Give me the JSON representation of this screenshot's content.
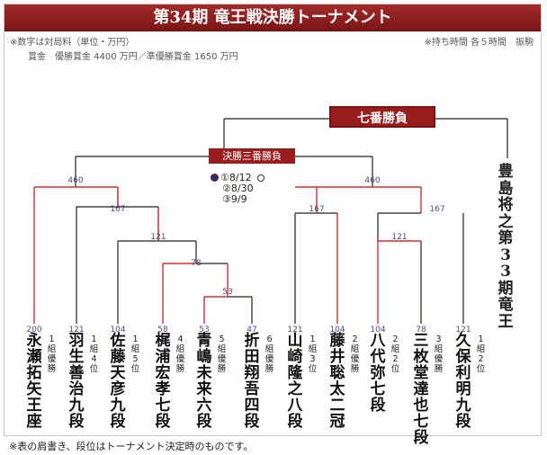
{
  "title": "第34期 竜王戦決勝トーナメント",
  "notes": {
    "unit": "※数字は対局料（単位・万円）",
    "prize": "賞金　優勝賞金 4400 万円／準優勝賞金 1650 万円",
    "time": "※持ち時間 各５時間　振駒"
  },
  "final_label": "七番勝負",
  "semi_label": "決勝三番勝負",
  "semi_dates": [
    "①8/12",
    "②8/30",
    "③9/9"
  ],
  "defender": "豊島将之第33期竜王",
  "fees": {
    "top_left": "460",
    "top_right": "460",
    "left_167": "167",
    "right_167a": "167",
    "right_167b": "167",
    "r121": "121",
    "right_121": "121",
    "r78": "78",
    "r53": "53"
  },
  "players": [
    {
      "fee": "200",
      "name": "永瀬拓矢王座",
      "qual": "1組優勝"
    },
    {
      "fee": "121",
      "name": "羽生善治九段",
      "qual": "1組4位"
    },
    {
      "fee": "104",
      "name": "佐藤天彦九段",
      "qual": "1組5位"
    },
    {
      "fee": "58",
      "name": "梶浦宏孝七段",
      "qual": "4組優勝"
    },
    {
      "fee": "53",
      "name": "青嶋未来六段",
      "qual": "5組優勝"
    },
    {
      "fee": "47",
      "name": "折田翔吾四段",
      "qual": "6組優勝"
    },
    {
      "fee": "121",
      "name": "山崎隆之八段",
      "qual": "1組3位"
    },
    {
      "fee": "104",
      "name": "藤井聡太二冠",
      "qual": "2組優勝"
    },
    {
      "fee": "104",
      "name": "八代　弥七段",
      "qual": "2組2位"
    },
    {
      "fee": "78",
      "name": "三枚堂達也七段",
      "qual": "3組優勝"
    },
    {
      "fee": "121",
      "name": "久保利明九段",
      "qual": "1組2位"
    }
  ],
  "footer": "※表の肩書き、段位はトーナメント決定時のものです。",
  "colors": {
    "accent": "#9a1d1d",
    "winner_line": "#d03030",
    "line": "#222222"
  }
}
